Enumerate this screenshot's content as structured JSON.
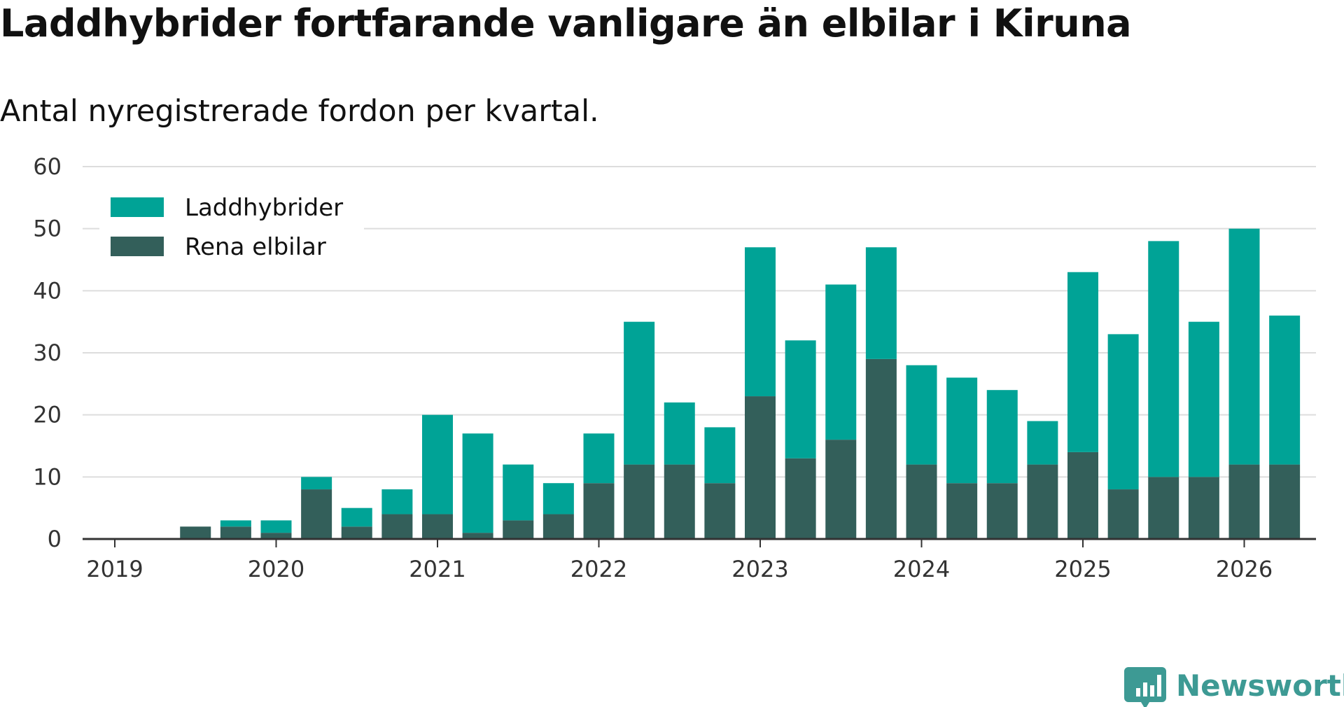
{
  "title": "Laddhybrider fortfarande vanligare än elbilar i Kiruna",
  "subtitle": "Antal nyregistrerade fordon per kvartal.",
  "brand": {
    "name": "Newsworthy",
    "icon": "newsworthy-logo-icon",
    "color": "#3d9a94"
  },
  "colors": {
    "laddhybrider": "#00a396",
    "elbilar": "#335f5a",
    "grid": "#dddddd",
    "axis": "#333333"
  },
  "chart_data": {
    "type": "bar",
    "stacked": true,
    "title": "Laddhybrider fortfarande vanligare än elbilar i Kiruna",
    "subtitle": "Antal nyregistrerade fordon per kvartal.",
    "xlabel": "",
    "ylabel": "",
    "ylim": [
      0,
      60
    ],
    "yticks": [
      0,
      10,
      20,
      30,
      40,
      50,
      60
    ],
    "xticks": [
      "2019",
      "2020",
      "2021",
      "2022",
      "2023",
      "2024",
      "2025",
      "2026"
    ],
    "grid": true,
    "legend_position": "top-left",
    "categories": [
      "2019 Q1",
      "2019 Q2",
      "2019 Q3",
      "2019 Q4",
      "2020 Q1",
      "2020 Q2",
      "2020 Q3",
      "2020 Q4",
      "2021 Q1",
      "2021 Q2",
      "2021 Q3",
      "2021 Q4",
      "2022 Q1",
      "2022 Q2",
      "2022 Q3",
      "2022 Q4",
      "2023 Q1",
      "2023 Q2",
      "2023 Q3",
      "2023 Q4",
      "2024 Q1",
      "2024 Q2",
      "2024 Q3",
      "2024 Q4",
      "2025 Q1",
      "2025 Q2",
      "2025 Q3",
      "2025 Q4",
      "2026 Q1"
    ],
    "series": [
      {
        "name": "Rena elbilar",
        "values": [
          0,
          2,
          2,
          1,
          8,
          2,
          4,
          4,
          1,
          3,
          4,
          9,
          12,
          12,
          9,
          23,
          13,
          16,
          29,
          12,
          9,
          9,
          12,
          14,
          8,
          10,
          10,
          12,
          12
        ]
      },
      {
        "name": "Laddhybrider",
        "values": [
          0,
          0,
          1,
          2,
          2,
          3,
          4,
          16,
          16,
          9,
          5,
          8,
          23,
          10,
          9,
          24,
          19,
          25,
          18,
          16,
          17,
          15,
          7,
          29,
          25,
          38,
          25,
          38,
          24
        ]
      }
    ]
  }
}
